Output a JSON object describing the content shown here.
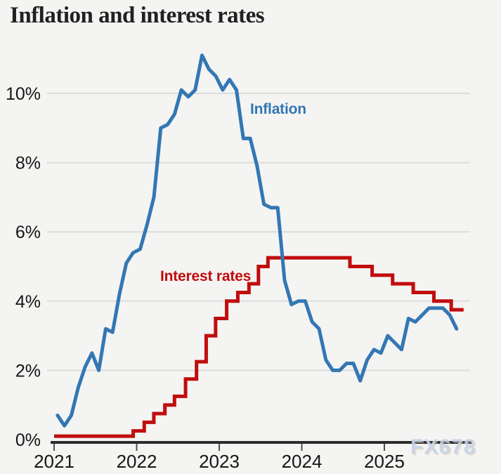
{
  "title": "Inflation and interest rates",
  "watermark": "FX678",
  "colors": {
    "inflation_blue": "#3377b4",
    "rates_red": "#c00d0d",
    "gridline": "#dcdcdc",
    "axis_line": "#2c2c2c",
    "tick_mark": "#4f4f4f",
    "tick_text": "#161616",
    "watermark_color": "#c6d3e8",
    "background": "#f4f4f2"
  },
  "chart_data": {
    "type": "line",
    "title": "Inflation and interest rates",
    "grid": "horizontal-only",
    "legend": "inline-series-labels",
    "x_tick_labels": [
      "2021",
      "2022",
      "2023",
      "2024",
      "2025"
    ],
    "x_tick_years": [
      2021,
      2022,
      2023,
      2024,
      2025
    ],
    "y_tick_labels": [
      "0%",
      "2%",
      "4%",
      "6%",
      "8%",
      "10%"
    ],
    "y_tick_values": [
      0,
      2,
      4,
      6,
      8,
      10
    ],
    "xlim": [
      2020.95,
      2026.05
    ],
    "ylim": [
      0,
      11.3
    ],
    "unit": "%",
    "series": [
      {
        "name": "Inflation",
        "type": "line",
        "frequency": "monthly",
        "start": "2021-01",
        "values": [
          0.7,
          0.4,
          0.7,
          1.5,
          2.1,
          2.5,
          2.0,
          3.2,
          3.1,
          4.2,
          5.1,
          5.4,
          5.5,
          6.2,
          7.0,
          9.0,
          9.1,
          9.4,
          10.1,
          9.9,
          10.1,
          11.1,
          10.7,
          10.5,
          10.1,
          10.4,
          10.1,
          8.7,
          8.7,
          7.9,
          6.8,
          6.7,
          6.7,
          4.6,
          3.9,
          4.0,
          4.0,
          3.4,
          3.2,
          2.3,
          2.0,
          2.0,
          2.2,
          2.2,
          1.7,
          2.3,
          2.6,
          2.5,
          3.0,
          2.8,
          2.6,
          3.5,
          3.4,
          3.6,
          3.8,
          3.8,
          3.8,
          3.6,
          3.2
        ]
      },
      {
        "name": "Interest rates",
        "type": "step",
        "steps": [
          [
            2021.0,
            0.1
          ],
          [
            2021.958,
            0.25
          ],
          [
            2022.092,
            0.5
          ],
          [
            2022.208,
            0.75
          ],
          [
            2022.342,
            1.0
          ],
          [
            2022.458,
            1.25
          ],
          [
            2022.592,
            1.75
          ],
          [
            2022.725,
            2.25
          ],
          [
            2022.842,
            3.0
          ],
          [
            2022.956,
            3.5
          ],
          [
            2023.09,
            4.0
          ],
          [
            2023.225,
            4.25
          ],
          [
            2023.36,
            4.5
          ],
          [
            2023.475,
            5.0
          ],
          [
            2023.59,
            5.25
          ],
          [
            2024.583,
            5.0
          ],
          [
            2024.852,
            4.75
          ],
          [
            2025.1,
            4.5
          ],
          [
            2025.35,
            4.25
          ],
          [
            2025.6,
            4.0
          ],
          [
            2025.81,
            3.75
          ]
        ],
        "end": 2025.96
      }
    ]
  }
}
